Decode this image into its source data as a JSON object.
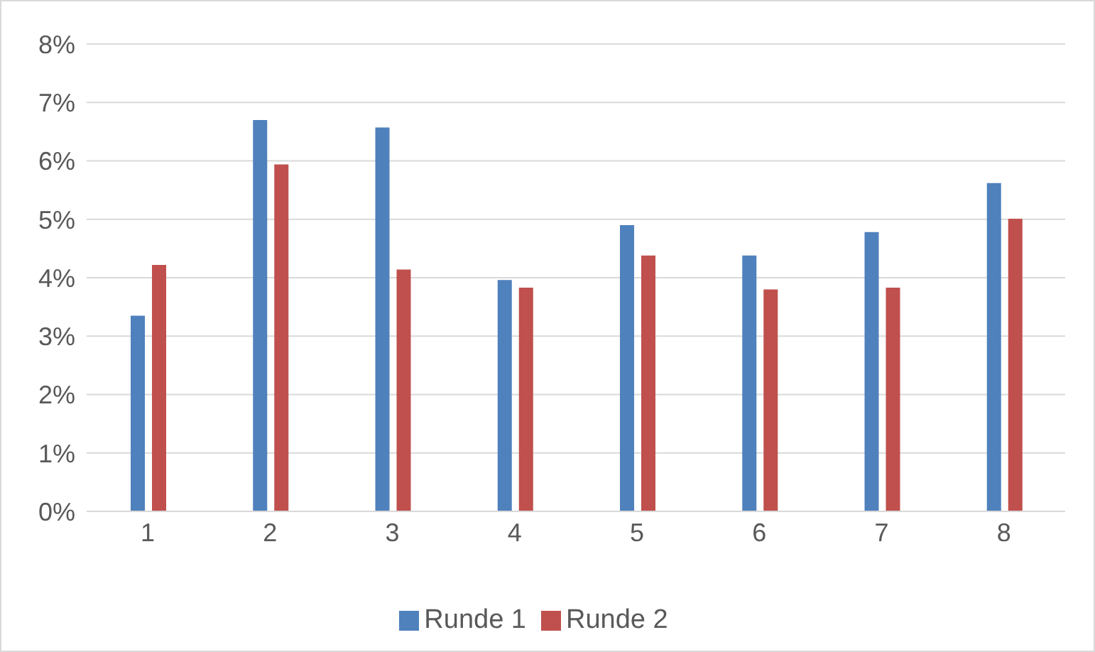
{
  "chart_data": {
    "type": "bar",
    "categories": [
      "1",
      "2",
      "3",
      "4",
      "5",
      "6",
      "7",
      "8"
    ],
    "series": [
      {
        "name": "Runde 1",
        "color": "#4f81bd",
        "values": [
          3.35,
          6.7,
          6.57,
          3.96,
          4.9,
          4.38,
          4.78,
          5.62
        ]
      },
      {
        "name": "Runde 2",
        "color": "#c0504d",
        "values": [
          4.22,
          5.94,
          4.14,
          3.83,
          4.38,
          3.8,
          3.83,
          5.01
        ]
      }
    ],
    "ylim": [
      0,
      8
    ],
    "yticks": [
      {
        "value": 0,
        "label": "0%"
      },
      {
        "value": 1,
        "label": "1%"
      },
      {
        "value": 2,
        "label": "2%"
      },
      {
        "value": 3,
        "label": "3%"
      },
      {
        "value": 4,
        "label": "4%"
      },
      {
        "value": 5,
        "label": "5%"
      },
      {
        "value": 6,
        "label": "6%"
      },
      {
        "value": 7,
        "label": "7%"
      },
      {
        "value": 8,
        "label": "8%"
      }
    ],
    "grid": "y",
    "legend": "bottom"
  }
}
